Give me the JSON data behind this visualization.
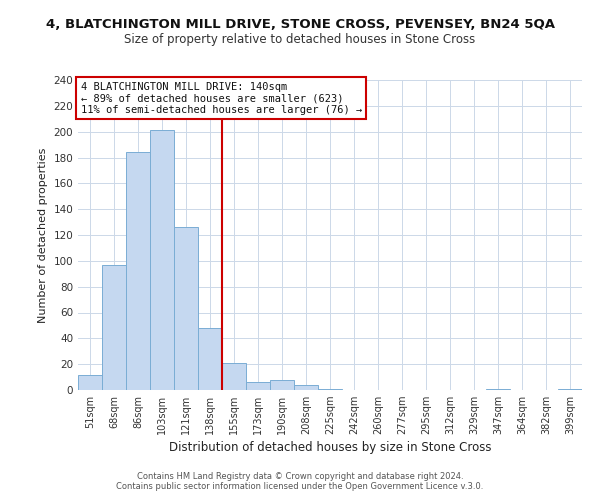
{
  "title": "4, BLATCHINGTON MILL DRIVE, STONE CROSS, PEVENSEY, BN24 5QA",
  "subtitle": "Size of property relative to detached houses in Stone Cross",
  "xlabel": "Distribution of detached houses by size in Stone Cross",
  "ylabel": "Number of detached properties",
  "bar_color": "#c5d8f0",
  "bar_edge_color": "#7aadd4",
  "categories": [
    "51sqm",
    "68sqm",
    "86sqm",
    "103sqm",
    "121sqm",
    "138sqm",
    "155sqm",
    "173sqm",
    "190sqm",
    "208sqm",
    "225sqm",
    "242sqm",
    "260sqm",
    "277sqm",
    "295sqm",
    "312sqm",
    "329sqm",
    "347sqm",
    "364sqm",
    "382sqm",
    "399sqm"
  ],
  "values": [
    12,
    97,
    184,
    201,
    126,
    48,
    21,
    6,
    8,
    4,
    1,
    0,
    0,
    0,
    0,
    0,
    0,
    1,
    0,
    0,
    1
  ],
  "ylim": [
    0,
    240
  ],
  "yticks": [
    0,
    20,
    40,
    60,
    80,
    100,
    120,
    140,
    160,
    180,
    200,
    220,
    240
  ],
  "vline_x": 5.5,
  "vline_color": "#cc0000",
  "annotation_line1": "4 BLATCHINGTON MILL DRIVE: 140sqm",
  "annotation_line2": "← 89% of detached houses are smaller (623)",
  "annotation_line3": "11% of semi-detached houses are larger (76) →",
  "footer1": "Contains HM Land Registry data © Crown copyright and database right 2024.",
  "footer2": "Contains public sector information licensed under the Open Government Licence v.3.0.",
  "background_color": "#ffffff",
  "grid_color": "#ccd8e8"
}
